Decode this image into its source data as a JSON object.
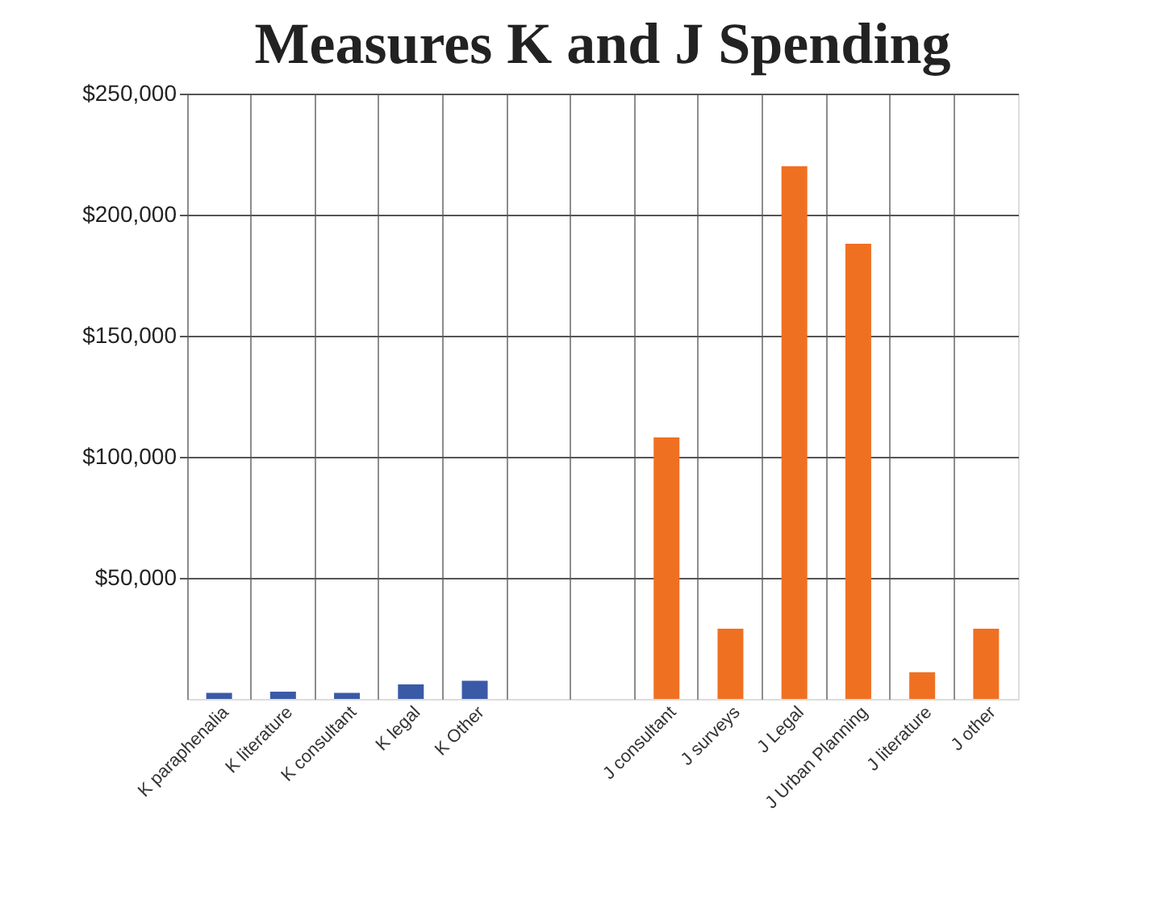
{
  "chart_data": {
    "type": "bar",
    "title": "Measures K and J Spending",
    "categories": [
      "K paraphenalia",
      "K literature",
      "K consultant",
      "K legal",
      "K Other",
      null,
      null,
      "J consultant",
      "J surveys",
      "J Legal",
      "J Urban Planning",
      "J literature",
      "J other"
    ],
    "values": [
      2500,
      3000,
      2500,
      6000,
      7500,
      null,
      null,
      108000,
      29000,
      220000,
      188000,
      11000,
      29000
    ],
    "colors": [
      "#3a5aa8",
      "#3a5aa8",
      "#3a5aa8",
      "#3a5aa8",
      "#3a5aa8",
      "#3a5aa8",
      "#3a5aa8",
      "#f07022",
      "#f07022",
      "#f07022",
      "#f07022",
      "#f07022",
      "#f07022"
    ],
    "ylim": [
      0,
      250000
    ],
    "yticks": [
      {
        "value": 50000,
        "label": "$50,000"
      },
      {
        "value": 100000,
        "label": "$100,000"
      },
      {
        "value": 150000,
        "label": "$150,000"
      },
      {
        "value": 200000,
        "label": "$200,000"
      },
      {
        "value": 250000,
        "label": "$250,000"
      }
    ],
    "grid": true
  }
}
